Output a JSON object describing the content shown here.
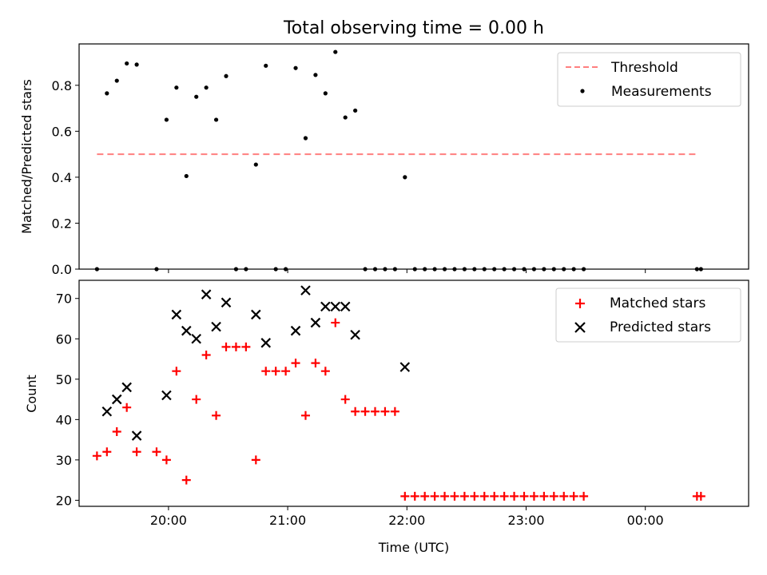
{
  "title": "Total observing time = 0.00 h",
  "colors": {
    "threshold": "#ff7f7f",
    "measurement": "#000000",
    "matched": "#ff0000",
    "predicted": "#000000"
  },
  "chart_data": [
    {
      "type": "scatter",
      "ylabel": "Matched/Predicted stars",
      "xlabel": "",
      "ylim": [
        0,
        0.98
      ],
      "yticks": [
        0.0,
        0.2,
        0.4,
        0.6,
        0.8
      ],
      "xlim": [
        "19:15",
        "00:52"
      ],
      "xticks": [
        "20:00",
        "21:00",
        "22:00",
        "23:00",
        "00:00"
      ],
      "legend_position": "top-right",
      "grid": false,
      "threshold": {
        "name": "Threshold",
        "value": 0.5,
        "x_range": [
          "19:24",
          "00:27"
        ]
      },
      "series": [
        {
          "name": "Measurements",
          "points": [
            [
              "19:24",
              0.0
            ],
            [
              "19:29",
              0.765
            ],
            [
              "19:34",
              0.82
            ],
            [
              "19:39",
              0.895
            ],
            [
              "19:44",
              0.89
            ],
            [
              "19:54",
              0.0
            ],
            [
              "19:59",
              0.65
            ],
            [
              "20:04",
              0.79
            ],
            [
              "20:09",
              0.405
            ],
            [
              "20:14",
              0.75
            ],
            [
              "20:19",
              0.79
            ],
            [
              "20:24",
              0.65
            ],
            [
              "20:29",
              0.84
            ],
            [
              "20:34",
              0.0
            ],
            [
              "20:39",
              0.0
            ],
            [
              "20:44",
              0.455
            ],
            [
              "20:49",
              0.885
            ],
            [
              "20:54",
              0.0
            ],
            [
              "20:59",
              0.0
            ],
            [
              "21:04",
              0.875
            ],
            [
              "21:09",
              0.57
            ],
            [
              "21:14",
              0.845
            ],
            [
              "21:19",
              0.765
            ],
            [
              "21:24",
              0.945
            ],
            [
              "21:29",
              0.66
            ],
            [
              "21:34",
              0.69
            ],
            [
              "21:39",
              0.0
            ],
            [
              "21:44",
              0.0
            ],
            [
              "21:49",
              0.0
            ],
            [
              "21:54",
              0.0
            ],
            [
              "21:59",
              0.4
            ],
            [
              "22:04",
              0.0
            ],
            [
              "22:09",
              0.0
            ],
            [
              "22:14",
              0.0
            ],
            [
              "22:19",
              0.0
            ],
            [
              "22:24",
              0.0
            ],
            [
              "22:29",
              0.0
            ],
            [
              "22:34",
              0.0
            ],
            [
              "22:39",
              0.0
            ],
            [
              "22:44",
              0.0
            ],
            [
              "22:49",
              0.0
            ],
            [
              "22:54",
              0.0
            ],
            [
              "22:59",
              0.0
            ],
            [
              "23:04",
              0.0
            ],
            [
              "23:09",
              0.0
            ],
            [
              "23:14",
              0.0
            ],
            [
              "23:19",
              0.0
            ],
            [
              "23:24",
              0.0
            ],
            [
              "23:29",
              0.0
            ],
            [
              "00:26",
              0.0
            ],
            [
              "00:28",
              0.0
            ]
          ]
        }
      ]
    },
    {
      "type": "scatter",
      "ylabel": "Count",
      "xlabel": "Time (UTC)",
      "ylim": [
        18.5,
        74.5
      ],
      "yticks": [
        20,
        30,
        40,
        50,
        60,
        70
      ],
      "xlim": [
        "19:15",
        "00:52"
      ],
      "xticks": [
        "20:00",
        "21:00",
        "22:00",
        "23:00",
        "00:00"
      ],
      "legend_position": "top-right",
      "grid": false,
      "series": [
        {
          "name": "Matched stars",
          "marker": "plus",
          "points": [
            [
              "19:24",
              31
            ],
            [
              "19:29",
              32
            ],
            [
              "19:34",
              37
            ],
            [
              "19:39",
              43
            ],
            [
              "19:44",
              32
            ],
            [
              "19:54",
              32
            ],
            [
              "19:59",
              30
            ],
            [
              "20:04",
              52
            ],
            [
              "20:09",
              25
            ],
            [
              "20:14",
              45
            ],
            [
              "20:19",
              56
            ],
            [
              "20:24",
              41
            ],
            [
              "20:29",
              58
            ],
            [
              "20:34",
              58
            ],
            [
              "20:39",
              58
            ],
            [
              "20:44",
              30
            ],
            [
              "20:49",
              52
            ],
            [
              "20:54",
              52
            ],
            [
              "20:59",
              52
            ],
            [
              "21:04",
              54
            ],
            [
              "21:09",
              41
            ],
            [
              "21:14",
              54
            ],
            [
              "21:19",
              52
            ],
            [
              "21:24",
              64
            ],
            [
              "21:29",
              45
            ],
            [
              "21:34",
              42
            ],
            [
              "21:39",
              42
            ],
            [
              "21:44",
              42
            ],
            [
              "21:49",
              42
            ],
            [
              "21:54",
              42
            ],
            [
              "21:59",
              21
            ],
            [
              "22:04",
              21
            ],
            [
              "22:09",
              21
            ],
            [
              "22:14",
              21
            ],
            [
              "22:19",
              21
            ],
            [
              "22:24",
              21
            ],
            [
              "22:29",
              21
            ],
            [
              "22:34",
              21
            ],
            [
              "22:39",
              21
            ],
            [
              "22:44",
              21
            ],
            [
              "22:49",
              21
            ],
            [
              "22:54",
              21
            ],
            [
              "22:59",
              21
            ],
            [
              "23:04",
              21
            ],
            [
              "23:09",
              21
            ],
            [
              "23:14",
              21
            ],
            [
              "23:19",
              21
            ],
            [
              "23:24",
              21
            ],
            [
              "23:29",
              21
            ],
            [
              "00:26",
              21
            ],
            [
              "00:28",
              21
            ]
          ]
        },
        {
          "name": "Predicted stars",
          "marker": "x",
          "points": [
            [
              "19:29",
              42
            ],
            [
              "19:34",
              45
            ],
            [
              "19:39",
              48
            ],
            [
              "19:44",
              36
            ],
            [
              "19:59",
              46
            ],
            [
              "20:04",
              66
            ],
            [
              "20:09",
              62
            ],
            [
              "20:14",
              60
            ],
            [
              "20:19",
              71
            ],
            [
              "20:24",
              63
            ],
            [
              "20:29",
              69
            ],
            [
              "20:44",
              66
            ],
            [
              "20:49",
              59
            ],
            [
              "21:04",
              62
            ],
            [
              "21:09",
              72
            ],
            [
              "21:14",
              64
            ],
            [
              "21:19",
              68
            ],
            [
              "21:24",
              68
            ],
            [
              "21:29",
              68
            ],
            [
              "21:34",
              61
            ],
            [
              "21:59",
              53
            ]
          ]
        }
      ]
    }
  ]
}
